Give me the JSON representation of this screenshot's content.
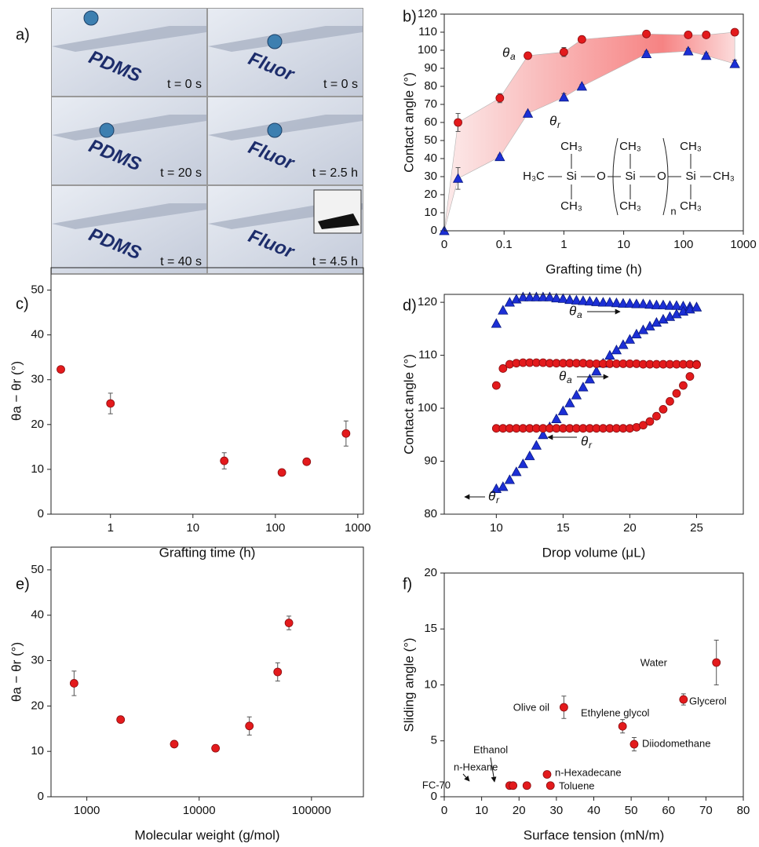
{
  "photo_panel": {
    "label": "a)",
    "tiles": [
      {
        "sample": "PDMS",
        "time": "t = 0 s"
      },
      {
        "sample": "Fluor",
        "time": "t = 0 s"
      },
      {
        "sample": "PDMS",
        "time": "t = 20 s"
      },
      {
        "sample": "Fluor",
        "time": "t = 2.5 h"
      },
      {
        "sample": "PDMS",
        "time": "t = 40 s"
      },
      {
        "sample": "Fluor",
        "time": "t = 4.5 h"
      }
    ]
  },
  "chart_data": [
    {
      "type": "scatter",
      "label": "b)",
      "xlabel": "Grafting time (h)",
      "ylabel": "Contact angle (°)",
      "xscale": "log",
      "xlim": [
        0,
        1000
      ],
      "xticks": [
        0,
        0.1,
        1,
        10,
        100,
        1000
      ],
      "ylim": [
        0,
        120
      ],
      "yticks": [
        0,
        10,
        20,
        30,
        40,
        50,
        60,
        70,
        80,
        90,
        100,
        110,
        120
      ],
      "band": true,
      "series": [
        {
          "color": "#e31a1c",
          "marker": "circle",
          "x": [
            0.017,
            0.085,
            0.25,
            1,
            2,
            24,
            120,
            240,
            720
          ],
          "values": [
            60,
            73.5,
            97,
            99,
            106,
            109,
            108.5,
            108.5,
            110
          ],
          "errors": [
            5,
            2.5,
            1,
            2.5,
            1,
            1,
            1,
            1,
            1
          ]
        },
        {
          "color": "#1c2fd6",
          "marker": "triangle",
          "x": [
            0,
            0.017,
            0.085,
            0.25,
            1,
            2,
            24,
            120,
            240,
            720
          ],
          "values": [
            0,
            29,
            41,
            65,
            74,
            80,
            98,
            99.5,
            97,
            92.5
          ],
          "errors": [
            0,
            6,
            1,
            1,
            2,
            1,
            1.5,
            1.5,
            1.5,
            2
          ]
        }
      ],
      "annotations": [
        {
          "text": "θ",
          "sub": "a"
        },
        {
          "text": "θ",
          "sub": "r"
        }
      ],
      "structure": [
        "CH₃",
        "CH₃",
        "CH₃",
        "CH₃",
        "CH₃",
        "CH₃",
        "H₃C",
        "Si",
        "O",
        "Si",
        "O",
        "Si",
        "CH₃",
        "n"
      ]
    },
    {
      "type": "scatter",
      "label": "c)",
      "xlabel": "Grafting time (h)",
      "ylabel": "θa − θr (°)",
      "xscale": "log",
      "xlim": [
        0.19,
        1170
      ],
      "xticks": [
        1,
        10,
        100,
        1000
      ],
      "ylim": [
        0,
        55
      ],
      "yticks": [
        0,
        10,
        20,
        30,
        40,
        50
      ],
      "x": [
        0.25,
        1,
        24,
        120,
        240,
        720
      ],
      "series": [
        {
          "color": "#e31a1c",
          "marker": "circle",
          "values": [
            32.3,
            24.7,
            11.9,
            9.3,
            11.7,
            18
          ],
          "errors": [
            0.5,
            2.3,
            1.8,
            0.5,
            0.5,
            2.8
          ]
        }
      ]
    },
    {
      "type": "scatter",
      "label": "d)",
      "xlabel": "Drop volume (μL)",
      "ylabel": "Contact angle (°)",
      "xlim": [
        6.1,
        28.5
      ],
      "xticks": [
        10,
        15,
        20,
        25
      ],
      "ylim": [
        80,
        121.5
      ],
      "yticks": [
        80,
        90,
        100,
        110,
        120
      ],
      "x": [
        10,
        10.5,
        11,
        11.5,
        12,
        12.5,
        13,
        13.5,
        14,
        14.5,
        15,
        15.5,
        16,
        16.5,
        17,
        17.5,
        18,
        18.5,
        19,
        19.5,
        20,
        20.5,
        21,
        21.5,
        22,
        22.5,
        23,
        23.5,
        24,
        24.5,
        25
      ],
      "series": [
        {
          "color": "#1c2fd6",
          "marker": "triangle",
          "values": [
            116,
            118.5,
            120,
            120.6,
            121,
            121,
            121,
            121,
            121,
            120.8,
            120.7,
            120.5,
            120.4,
            120.3,
            120.2,
            120.1,
            120,
            120,
            119.9,
            119.8,
            119.8,
            119.7,
            119.7,
            119.6,
            119.5,
            119.5,
            119.4,
            119.4,
            119.3,
            119.2,
            119.1
          ]
        },
        {
          "color": "#1c2fd6",
          "marker": "triangle",
          "values": [
            84.8,
            85.2,
            86.5,
            88,
            89.5,
            91,
            93,
            95,
            96.5,
            98,
            99.5,
            101,
            102.5,
            104,
            105.5,
            107,
            108.5,
            110,
            111,
            112,
            113,
            114,
            114.8,
            115.5,
            116.2,
            116.8,
            117.3,
            117.8,
            118.3,
            118.7,
            119.1
          ]
        },
        {
          "color": "#e31a1c",
          "marker": "circle",
          "values": [
            104.3,
            107.5,
            108.3,
            108.5,
            108.6,
            108.6,
            108.6,
            108.6,
            108.5,
            108.5,
            108.5,
            108.5,
            108.5,
            108.5,
            108.4,
            108.4,
            108.4,
            108.4,
            108.4,
            108.4,
            108.4,
            108.4,
            108.3,
            108.3,
            108.3,
            108.3,
            108.3,
            108.3,
            108.3,
            108.3,
            108.3
          ]
        },
        {
          "color": "#e31a1c",
          "marker": "circle",
          "values": [
            96.2,
            96.2,
            96.2,
            96.2,
            96.2,
            96.2,
            96.2,
            96.2,
            96.2,
            96.2,
            96.2,
            96.2,
            96.2,
            96.2,
            96.2,
            96.2,
            96.2,
            96.2,
            96.2,
            96.2,
            96.2,
            96.4,
            96.8,
            97.5,
            98.5,
            99.8,
            101.3,
            102.8,
            104.3,
            106,
            108.2
          ]
        }
      ],
      "annotations": [
        {
          "text": "θ",
          "sub": "a"
        },
        {
          "text": "θ",
          "sub": "a"
        },
        {
          "text": "θ",
          "sub": "r"
        },
        {
          "text": "θ",
          "sub": "r"
        }
      ]
    },
    {
      "type": "scatter",
      "label": "e)",
      "xlabel": "Molecular weight (g/mol)",
      "ylabel": "θa − θr (°)",
      "xscale": "log",
      "xlim": [
        480,
        290000
      ],
      "xticks": [
        1000,
        10000,
        100000
      ],
      "ylim": [
        0,
        55
      ],
      "yticks": [
        0,
        10,
        20,
        30,
        40,
        50
      ],
      "x": [
        770,
        2000,
        6000,
        14000,
        28000,
        50000,
        63000
      ],
      "series": [
        {
          "color": "#e31a1c",
          "marker": "circle",
          "values": [
            25,
            17,
            11.6,
            10.7,
            15.6,
            27.5,
            38.3
          ],
          "errors": [
            2.7,
            0.7,
            0.5,
            0.5,
            2,
            2,
            1.5
          ]
        }
      ]
    },
    {
      "type": "scatter",
      "label": "f)",
      "xlabel": "Surface tension (mN/m)",
      "ylabel": "Sliding angle (°)",
      "xlim": [
        0,
        80
      ],
      "xticks": [
        0,
        10,
        20,
        30,
        40,
        50,
        60,
        70,
        80
      ],
      "ylim": [
        0,
        20
      ],
      "yticks": [
        0,
        5,
        10,
        15,
        20
      ],
      "x": [
        17.5,
        18.4,
        22.1,
        27.5,
        28.4,
        32,
        47.7,
        50.8,
        64,
        72.8
      ],
      "series": [
        {
          "color": "#e31a1c",
          "marker": "circle",
          "values": [
            1,
            1,
            1,
            2,
            1,
            8,
            6.3,
            4.7,
            8.7,
            12
          ],
          "errors": [
            0.2,
            0.2,
            0.2,
            0.2,
            0.2,
            1,
            0.6,
            0.6,
            0.5,
            2
          ]
        }
      ],
      "point_labels": [
        "FC-70",
        "n-Hexane",
        "Ethanol",
        "n-Hexadecane",
        "Toluene",
        "Olive oil",
        "Ethylene glycol",
        "Diiodomethane",
        "Glycerol",
        "Water"
      ]
    }
  ]
}
